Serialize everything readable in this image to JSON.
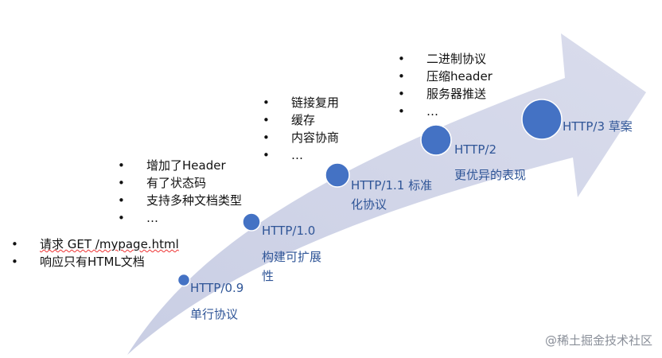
{
  "colors": {
    "arrow": "#d7dbeb",
    "node": "#4472c4",
    "label": "#2f5597"
  },
  "milestones": [
    {
      "name": "HTTP/0.9",
      "desc": "单行协议",
      "features": [
        "请求 GET /mypage.html",
        "响应只有HTML文档"
      ]
    },
    {
      "name": "HTTP/1.0",
      "desc": "构建可扩展性",
      "features": [
        "增加了Header",
        "有了状态码",
        "支持多种文档类型",
        "…"
      ]
    },
    {
      "name": "HTTP/1.1 标准化协议",
      "desc": "",
      "features": [
        "链接复用",
        "缓存",
        "内容协商",
        "…"
      ]
    },
    {
      "name": "HTTP/2",
      "desc": "更优异的表现",
      "features": [
        "二进制协议",
        "压缩header",
        "服务器推送",
        "…"
      ]
    },
    {
      "name": "HTTP/3 草案",
      "desc": "",
      "features": []
    }
  ],
  "watermark": "@稀土掘金技术社区"
}
